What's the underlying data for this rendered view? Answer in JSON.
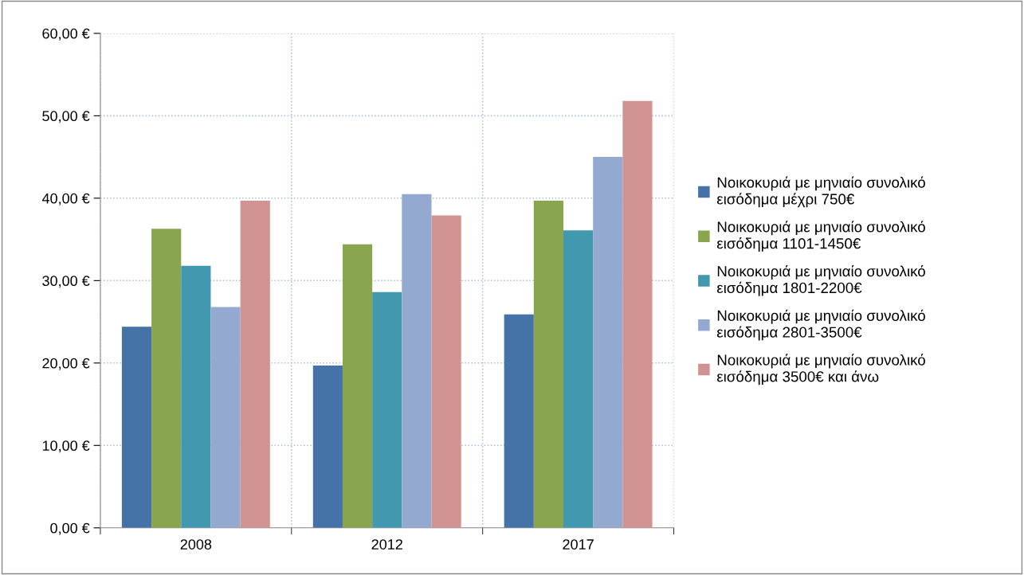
{
  "chart_data": {
    "type": "bar",
    "categories": [
      "2008",
      "2012",
      "2017"
    ],
    "series": [
      {
        "name": "Νοικοκυριά με μηνιαίο συνολικό\nεισόδημα μέχρι 750€",
        "color": "#4572a7",
        "values": [
          24.4,
          19.7,
          25.9
        ]
      },
      {
        "name": "Νοικοκυριά με μηνιαίο συνολικό\nεισόδημα 1101-1450€",
        "color": "#89a54e",
        "values": [
          36.3,
          34.4,
          39.7
        ]
      },
      {
        "name": "Νοικοκυριά με μηνιαίο συνολικό\nεισόδημα 1801-2200€",
        "color": "#4198af",
        "values": [
          31.8,
          28.6,
          36.1
        ]
      },
      {
        "name": "Νοικοκυριά με μηνιαίο συνολικό\nεισόδημα 2801-3500€",
        "color": "#93a9cf",
        "values": [
          26.8,
          40.5,
          45.0
        ]
      },
      {
        "name": "Νοικοκυριά με μηνιαίο συνολικό\nεισόδημα 3500€ και άνω",
        "color": "#d19392",
        "values": [
          39.7,
          37.9,
          51.8
        ]
      }
    ],
    "ylim": [
      0,
      60
    ],
    "yticks": [
      {
        "value": 0,
        "label": "0,00 €"
      },
      {
        "value": 10,
        "label": "10,00 €"
      },
      {
        "value": 20,
        "label": "20,00 €"
      },
      {
        "value": 30,
        "label": "30,00 €"
      },
      {
        "value": 40,
        "label": "40,00 €"
      },
      {
        "value": 50,
        "label": "50,00 €"
      },
      {
        "value": 60,
        "label": "60,00 €"
      }
    ],
    "grid": true,
    "legend": "right"
  }
}
